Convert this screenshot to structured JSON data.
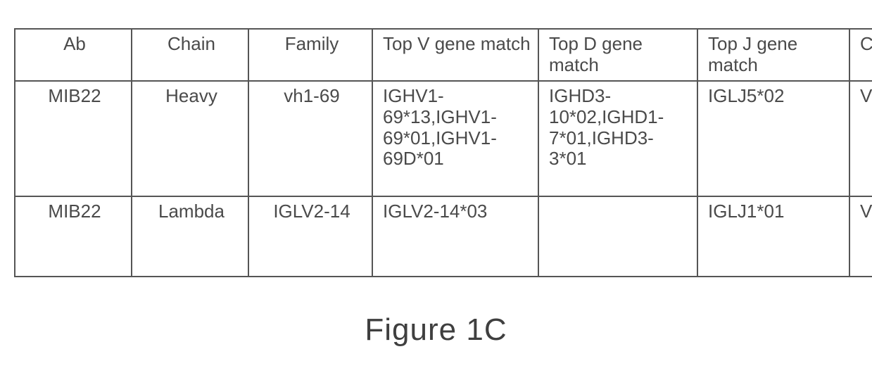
{
  "table": {
    "columns": [
      {
        "key": "ab",
        "label": "Ab",
        "class": "col-ab"
      },
      {
        "key": "chain",
        "label": "Chain",
        "class": "col-chain"
      },
      {
        "key": "family",
        "label": "Family",
        "class": "col-family"
      },
      {
        "key": "v",
        "label": "Top V gene match",
        "class": "col-v hdr-left"
      },
      {
        "key": "d",
        "label": "Top D gene match",
        "class": "col-d hdr-left"
      },
      {
        "key": "j",
        "label": "Top J gene match",
        "class": "col-j hdr-left"
      },
      {
        "key": "type",
        "label": "Chain type",
        "class": "col-type hdr-left"
      }
    ],
    "rows": [
      {
        "ab": "MIB22",
        "chain": "Heavy",
        "family": "vh1-69",
        "v": "IGHV1-69*13,IGHV1-69*01,IGHV1-69D*01",
        "d": "IGHD3-10*02,IGHD1-7*01,IGHD3-3*01",
        "j": "IGLJ5*02",
        "type": "VH",
        "rowClass": "row-tall"
      },
      {
        "ab": "MIB22",
        "chain": "Lambda",
        "family": "IGLV2-14",
        "v": "IGLV2-14*03",
        "d": "",
        "j": "IGLJ1*01",
        "type": "VL",
        "rowClass": "row-med"
      }
    ],
    "border_color": "#555555",
    "text_color": "#4a4a4a",
    "font_size_cell": 26,
    "font_size_caption": 44,
    "background_color": "#ffffff"
  },
  "caption": "Figure 1C"
}
